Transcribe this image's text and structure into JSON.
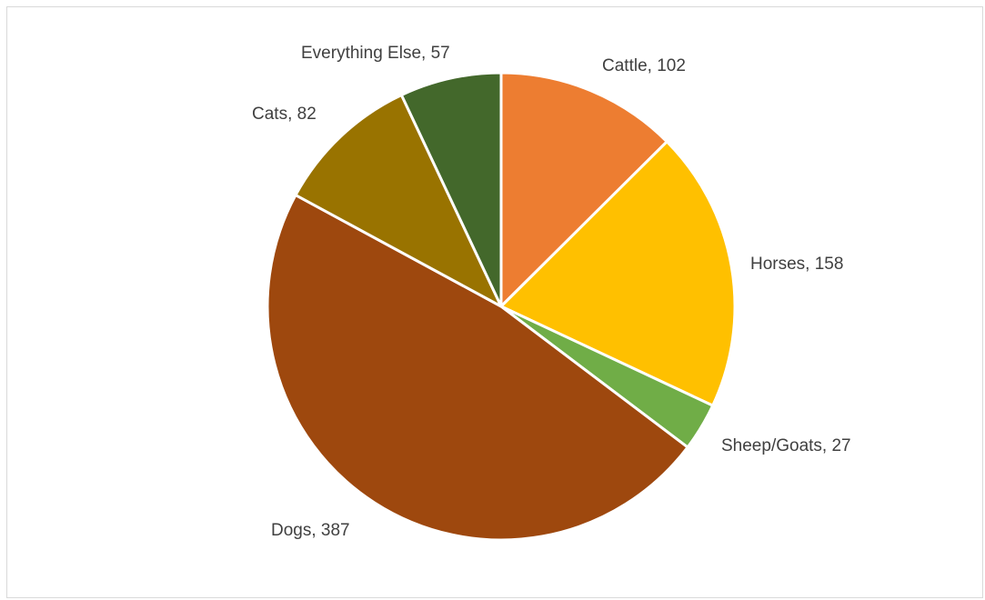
{
  "chart_data": {
    "type": "pie",
    "title": "",
    "start_angle_deg": 0,
    "direction": "clockwise",
    "slices": [
      {
        "label": "Cattle",
        "value": 102,
        "color": "#ED7D31",
        "label_text": "Cattle, 102"
      },
      {
        "label": "Horses",
        "value": 158,
        "color": "#FFC000",
        "label_text": "Horses, 158"
      },
      {
        "label": "Sheep/Goats",
        "value": 27,
        "color": "#70AD47",
        "label_text": "Sheep/Goats, 27"
      },
      {
        "label": "Dogs",
        "value": 387,
        "color": "#9E480E",
        "label_text": "Dogs, 387"
      },
      {
        "label": "Cats",
        "value": 82,
        "color": "#997300",
        "label_text": "Cats, 82"
      },
      {
        "label": "Everything Else",
        "value": 57,
        "color": "#43682B",
        "label_text": "Everything Else, 57"
      }
    ],
    "legend": "none",
    "data_labels": "outside"
  }
}
